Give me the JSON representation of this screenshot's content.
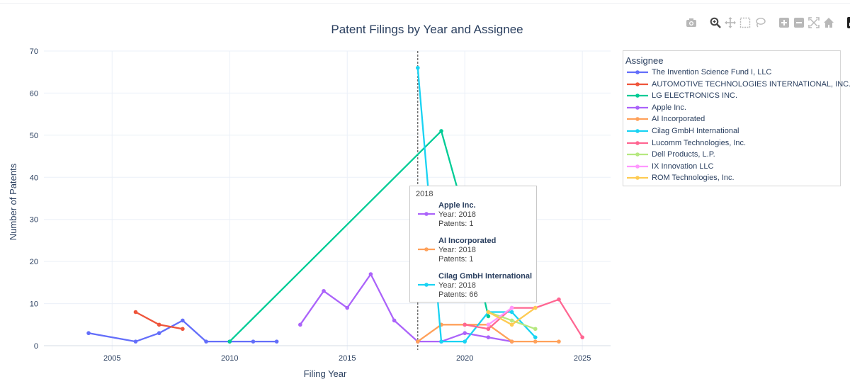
{
  "modebar": {
    "buttons": [
      "camera-icon",
      "zoom-icon",
      "pan-icon",
      "box-select-icon",
      "lasso-icon",
      "zoom-in-icon",
      "zoom-out-icon",
      "autoscale-icon",
      "home-icon",
      "plotly-logo-icon"
    ]
  },
  "legend": {
    "title": "Assignee"
  },
  "tooltip": {
    "header": "2018",
    "entries": [
      {
        "name": "Apple Inc.",
        "year_line": "Year: 2018",
        "patents_line": "Patents: 1",
        "color": "#ab63fa"
      },
      {
        "name": "AI Incorporated",
        "year_line": "Year: 2018",
        "patents_line": "Patents: 1",
        "color": "#ffa15a"
      },
      {
        "name": "Cilag GmbH International",
        "year_line": "Year: 2018",
        "patents_line": "Patents: 66",
        "color": "#19d3f3"
      }
    ]
  },
  "chart_data": {
    "type": "line",
    "title": "Patent Filings by Year and Assignee",
    "xlabel": "Filing Year",
    "ylabel": "Number of Patents",
    "xlim": [
      2002.1,
      2026.2
    ],
    "ylim": [
      -1,
      70
    ],
    "x_ticks": [
      2005,
      2010,
      2015,
      2020,
      2025
    ],
    "y_ticks": [
      0,
      10,
      20,
      30,
      40,
      50,
      60,
      70
    ],
    "grid": true,
    "hover_x": 2018,
    "legend_position": "right",
    "series": [
      {
        "name": "The Invention Science Fund I, LLC",
        "color": "#636efa",
        "x": [
          2004,
          2006,
          2007,
          2008,
          2009,
          2010,
          2011,
          2012
        ],
        "y": [
          3,
          1,
          3,
          6,
          1,
          1,
          1,
          1
        ]
      },
      {
        "name": "AUTOMOTIVE TECHNOLOGIES INTERNATIONAL, INC.",
        "color": "#ef553b",
        "x": [
          2006,
          2007,
          2008
        ],
        "y": [
          8,
          5,
          4
        ]
      },
      {
        "name": "LG ELECTRONICS INC.",
        "color": "#00cc96",
        "x": [
          2010,
          2019,
          2020,
          2021
        ],
        "y": [
          1,
          51,
          31,
          7
        ]
      },
      {
        "name": "Apple Inc.",
        "color": "#ab63fa",
        "x": [
          2013,
          2014,
          2015,
          2016,
          2017,
          2018,
          2019,
          2020,
          2021,
          2022
        ],
        "y": [
          5,
          13,
          9,
          17,
          6,
          1,
          1,
          3,
          2,
          1
        ]
      },
      {
        "name": "AI Incorporated",
        "color": "#ffa15a",
        "x": [
          2018,
          2019,
          2020,
          2021,
          2022,
          2023,
          2024
        ],
        "y": [
          1,
          5,
          5,
          5,
          1,
          1,
          1
        ]
      },
      {
        "name": "Cilag GmbH International",
        "color": "#19d3f3",
        "x": [
          2018,
          2019,
          2020,
          2021,
          2022,
          2023
        ],
        "y": [
          66,
          1,
          1,
          8,
          8,
          2
        ]
      },
      {
        "name": "Lucomm Technologies, Inc.",
        "color": "#ff6692",
        "x": [
          2020,
          2021,
          2022,
          2023,
          2024,
          2025
        ],
        "y": [
          5,
          4,
          9,
          9,
          11,
          2
        ]
      },
      {
        "name": "Dell Products, L.P.",
        "color": "#b6e880",
        "x": [
          2021,
          2022,
          2023
        ],
        "y": [
          8,
          6,
          4
        ]
      },
      {
        "name": "IX Innovation LLC",
        "color": "#ff97ff",
        "x": [
          2021,
          2022
        ],
        "y": [
          5,
          9
        ]
      },
      {
        "name": "ROM Technologies, Inc.",
        "color": "#fecb52",
        "x": [
          2021,
          2022,
          2023
        ],
        "y": [
          8,
          5,
          9
        ]
      }
    ]
  }
}
